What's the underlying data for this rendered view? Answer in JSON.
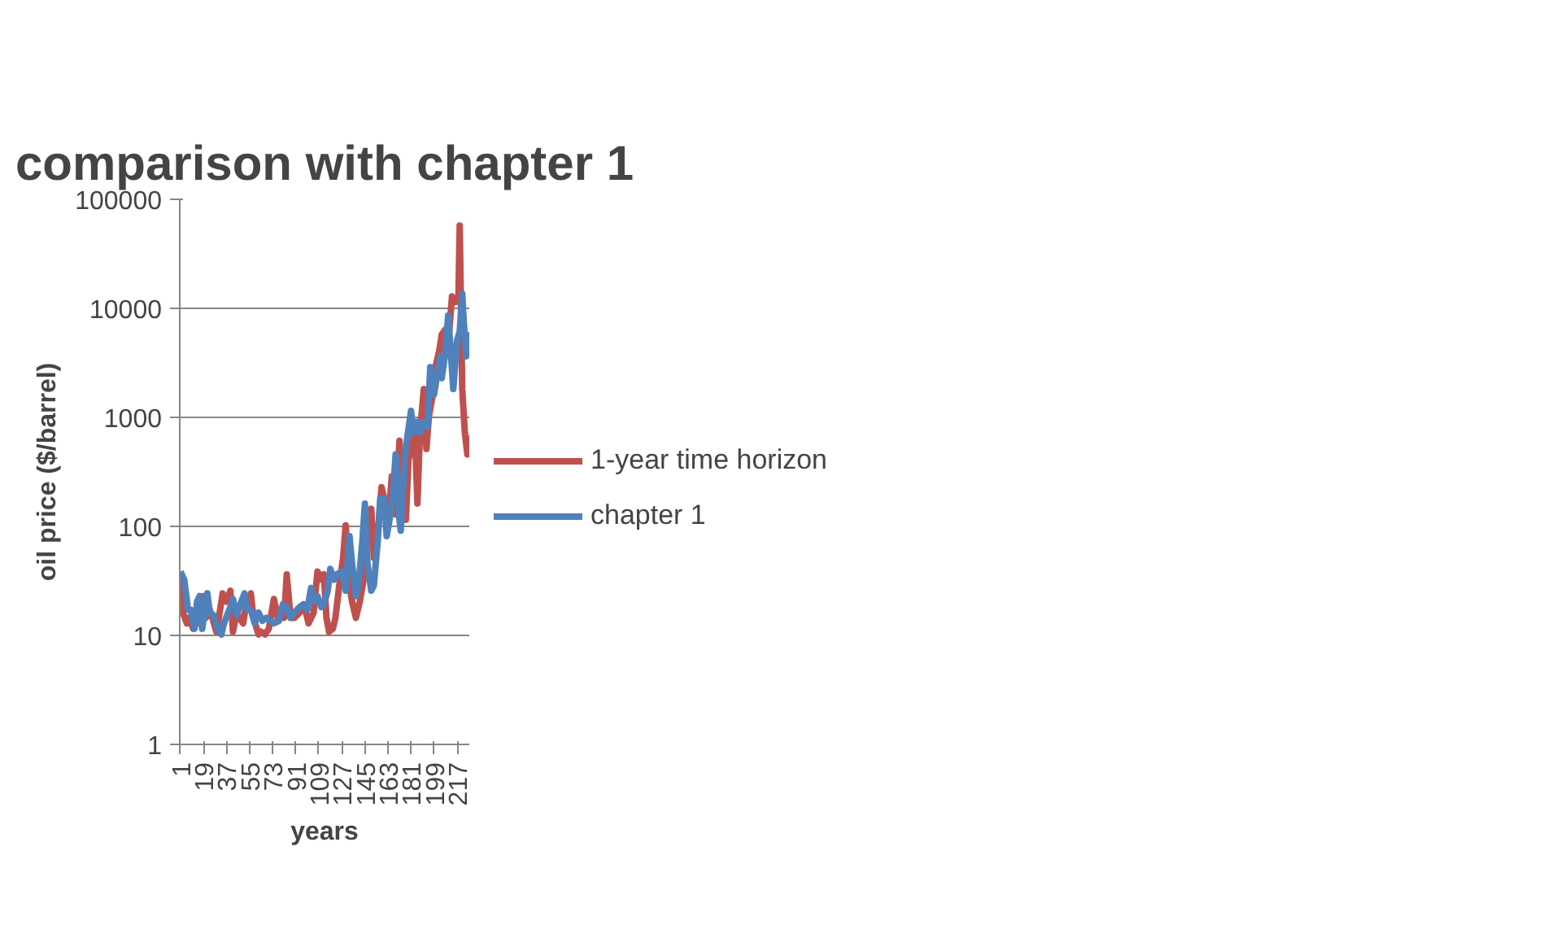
{
  "chart_data": {
    "type": "line",
    "title": "comparison with chapter 1",
    "xlabel": "years",
    "ylabel": "oil price ($/barrel)",
    "log": "y",
    "grid": "y",
    "legend": "right",
    "line_style": "solid",
    "xlim": [
      0.5,
      226.5
    ],
    "xticks": [
      1,
      19,
      37,
      55,
      73,
      91,
      109,
      127,
      145,
      163,
      181,
      199,
      217
    ],
    "ylim": [
      1,
      100000
    ],
    "yticks": [
      1,
      10,
      100,
      1000,
      10000,
      100000
    ],
    "series": [
      {
        "name": "1-year time horizon",
        "color": "#c0504d",
        "x": [
          1,
          3,
          6,
          8,
          11,
          13,
          16,
          18,
          21,
          23,
          26,
          29,
          31,
          34,
          37,
          40,
          42,
          45,
          47,
          50,
          52,
          56,
          58,
          62,
          64,
          67,
          70,
          74,
          77,
          79,
          82,
          84,
          87,
          90,
          94,
          98,
          101,
          105,
          108,
          111,
          113,
          115,
          117,
          120,
          122,
          125,
          128,
          130,
          133,
          135,
          138,
          141,
          144,
          146,
          150,
          152,
          155,
          158,
          161,
          164,
          166,
          169,
          172,
          174,
          177,
          179,
          182,
          184,
          186,
          188,
          191,
          193,
          195,
          198,
          200,
          203,
          205,
          208,
          210,
          213,
          216,
          218,
          219,
          221,
          223,
          225,
          226
        ],
        "values": [
          32.4,
          16.2,
          12.9,
          14.5,
          11.5,
          16.2,
          12.9,
          22.9,
          14.5,
          18.2,
          14.5,
          10.8,
          14.5,
          24.3,
          20.4,
          25.7,
          10.8,
          16.2,
          14.5,
          12.9,
          18.2,
          24.3,
          14.5,
          10.2,
          10.8,
          10.2,
          11.5,
          21.6,
          14.5,
          16.2,
          14.5,
          36.3,
          14.5,
          14.5,
          16.2,
          18.2,
          12.9,
          16.2,
          38.5,
          32.4,
          36.3,
          14.5,
          10.8,
          11.5,
          14.5,
          28.8,
          51.3,
          102,
          28.8,
          20.4,
          14.5,
          20.4,
          32.4,
          64.6,
          145,
          51.3,
          81.3,
          229,
          162,
          145,
          288,
          129,
          610,
          257,
          115,
          407,
          575,
          724,
          162,
          724,
          1820,
          513,
          1023,
          1622,
          2884,
          4074,
          5754,
          6457,
          4571,
          12880,
          11480,
          12880,
          57540,
          1820,
          724,
          457,
          684
        ]
      },
      {
        "name": "chapter 1",
        "color": "#4f81bd",
        "x": [
          1,
          4,
          7,
          9,
          12,
          14,
          16,
          18,
          22,
          24,
          27,
          30,
          33,
          35,
          40,
          42,
          45,
          47,
          51,
          53,
          56,
          59,
          62,
          65,
          68,
          72,
          74,
          78,
          81,
          84,
          87,
          90,
          94,
          97,
          100,
          103,
          106,
          108,
          111,
          113,
          116,
          118,
          121,
          123,
          127,
          130,
          133,
          135,
          138,
          140,
          143,
          145,
          147,
          150,
          152,
          155,
          157,
          160,
          162,
          165,
          167,
          169,
          172,
          173,
          176,
          178,
          181,
          183,
          186,
          188,
          191,
          194,
          196,
          199,
          201,
          204,
          205,
          208,
          210,
          212,
          214,
          217,
          219,
          221,
          222,
          224,
          226
        ],
        "values": [
          38.5,
          32.4,
          17.2,
          17.2,
          11.5,
          20.4,
          22.9,
          11.5,
          24.3,
          16.2,
          15.3,
          11.5,
          10.2,
          12.9,
          18.2,
          21.6,
          15.3,
          18.2,
          24.3,
          17.2,
          17.2,
          12.9,
          16.2,
          13.6,
          14.5,
          13.6,
          12.9,
          13.6,
          19.3,
          18.2,
          14.5,
          16.2,
          18.2,
          19.3,
          17.2,
          27.2,
          20.4,
          22.9,
          18.2,
          19.3,
          25.7,
          40.7,
          32.4,
          36.3,
          38.5,
          25.7,
          81.3,
          45.7,
          22.9,
          28.8,
          72.4,
          162,
          45.7,
          25.7,
          28.8,
          72.4,
          182,
          182,
          81.3,
          129,
          204,
          457,
          115,
          91.2,
          407,
          646,
          1148,
          724,
          912,
          724,
          912,
          813,
          2884,
          1622,
          2291,
          3631,
          2291,
          4074,
          8610,
          4074,
          1820,
          5129,
          6095,
          13650,
          8128,
          3631,
          6095
        ]
      }
    ]
  }
}
